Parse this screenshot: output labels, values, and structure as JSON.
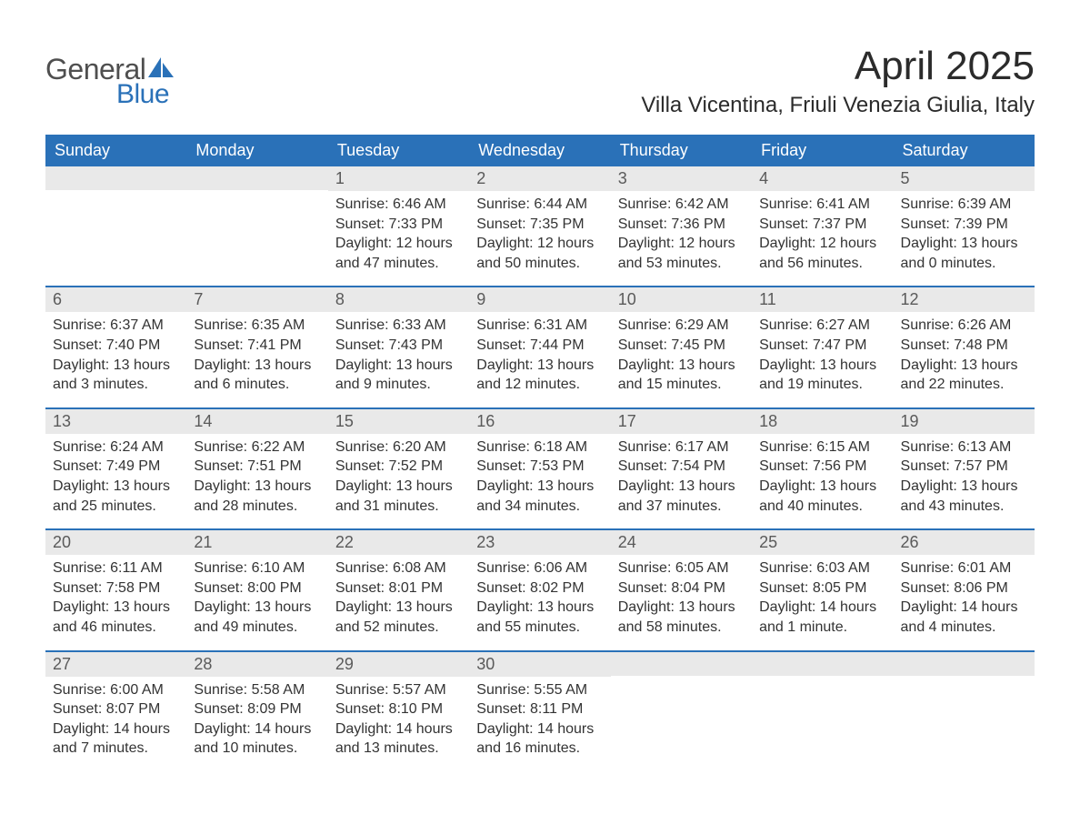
{
  "logo": {
    "text_general": "General",
    "text_blue": "Blue",
    "accent_color": "#2a71b8",
    "text_color": "#4f4f4f"
  },
  "title": "April 2025",
  "location": "Villa Vicentina, Friuli Venezia Giulia, Italy",
  "colors": {
    "header_bg": "#2a71b8",
    "header_fg": "#ffffff",
    "daynum_bg": "#e9e9e9",
    "daynum_fg": "#5a5a5a",
    "body_fg": "#333333",
    "week_divider": "#2a71b8",
    "page_bg": "#ffffff"
  },
  "typography": {
    "title_fontsize": 44,
    "location_fontsize": 24,
    "weekday_fontsize": 18,
    "daynum_fontsize": 18,
    "body_fontsize": 16
  },
  "weekdays": [
    "Sunday",
    "Monday",
    "Tuesday",
    "Wednesday",
    "Thursday",
    "Friday",
    "Saturday"
  ],
  "weeks": [
    [
      {
        "day": "",
        "sunrise": "",
        "sunset": "",
        "daylight": ""
      },
      {
        "day": "",
        "sunrise": "",
        "sunset": "",
        "daylight": ""
      },
      {
        "day": "1",
        "sunrise": "Sunrise: 6:46 AM",
        "sunset": "Sunset: 7:33 PM",
        "daylight": "Daylight: 12 hours and 47 minutes."
      },
      {
        "day": "2",
        "sunrise": "Sunrise: 6:44 AM",
        "sunset": "Sunset: 7:35 PM",
        "daylight": "Daylight: 12 hours and 50 minutes."
      },
      {
        "day": "3",
        "sunrise": "Sunrise: 6:42 AM",
        "sunset": "Sunset: 7:36 PM",
        "daylight": "Daylight: 12 hours and 53 minutes."
      },
      {
        "day": "4",
        "sunrise": "Sunrise: 6:41 AM",
        "sunset": "Sunset: 7:37 PM",
        "daylight": "Daylight: 12 hours and 56 minutes."
      },
      {
        "day": "5",
        "sunrise": "Sunrise: 6:39 AM",
        "sunset": "Sunset: 7:39 PM",
        "daylight": "Daylight: 13 hours and 0 minutes."
      }
    ],
    [
      {
        "day": "6",
        "sunrise": "Sunrise: 6:37 AM",
        "sunset": "Sunset: 7:40 PM",
        "daylight": "Daylight: 13 hours and 3 minutes."
      },
      {
        "day": "7",
        "sunrise": "Sunrise: 6:35 AM",
        "sunset": "Sunset: 7:41 PM",
        "daylight": "Daylight: 13 hours and 6 minutes."
      },
      {
        "day": "8",
        "sunrise": "Sunrise: 6:33 AM",
        "sunset": "Sunset: 7:43 PM",
        "daylight": "Daylight: 13 hours and 9 minutes."
      },
      {
        "day": "9",
        "sunrise": "Sunrise: 6:31 AM",
        "sunset": "Sunset: 7:44 PM",
        "daylight": "Daylight: 13 hours and 12 minutes."
      },
      {
        "day": "10",
        "sunrise": "Sunrise: 6:29 AM",
        "sunset": "Sunset: 7:45 PM",
        "daylight": "Daylight: 13 hours and 15 minutes."
      },
      {
        "day": "11",
        "sunrise": "Sunrise: 6:27 AM",
        "sunset": "Sunset: 7:47 PM",
        "daylight": "Daylight: 13 hours and 19 minutes."
      },
      {
        "day": "12",
        "sunrise": "Sunrise: 6:26 AM",
        "sunset": "Sunset: 7:48 PM",
        "daylight": "Daylight: 13 hours and 22 minutes."
      }
    ],
    [
      {
        "day": "13",
        "sunrise": "Sunrise: 6:24 AM",
        "sunset": "Sunset: 7:49 PM",
        "daylight": "Daylight: 13 hours and 25 minutes."
      },
      {
        "day": "14",
        "sunrise": "Sunrise: 6:22 AM",
        "sunset": "Sunset: 7:51 PM",
        "daylight": "Daylight: 13 hours and 28 minutes."
      },
      {
        "day": "15",
        "sunrise": "Sunrise: 6:20 AM",
        "sunset": "Sunset: 7:52 PM",
        "daylight": "Daylight: 13 hours and 31 minutes."
      },
      {
        "day": "16",
        "sunrise": "Sunrise: 6:18 AM",
        "sunset": "Sunset: 7:53 PM",
        "daylight": "Daylight: 13 hours and 34 minutes."
      },
      {
        "day": "17",
        "sunrise": "Sunrise: 6:17 AM",
        "sunset": "Sunset: 7:54 PM",
        "daylight": "Daylight: 13 hours and 37 minutes."
      },
      {
        "day": "18",
        "sunrise": "Sunrise: 6:15 AM",
        "sunset": "Sunset: 7:56 PM",
        "daylight": "Daylight: 13 hours and 40 minutes."
      },
      {
        "day": "19",
        "sunrise": "Sunrise: 6:13 AM",
        "sunset": "Sunset: 7:57 PM",
        "daylight": "Daylight: 13 hours and 43 minutes."
      }
    ],
    [
      {
        "day": "20",
        "sunrise": "Sunrise: 6:11 AM",
        "sunset": "Sunset: 7:58 PM",
        "daylight": "Daylight: 13 hours and 46 minutes."
      },
      {
        "day": "21",
        "sunrise": "Sunrise: 6:10 AM",
        "sunset": "Sunset: 8:00 PM",
        "daylight": "Daylight: 13 hours and 49 minutes."
      },
      {
        "day": "22",
        "sunrise": "Sunrise: 6:08 AM",
        "sunset": "Sunset: 8:01 PM",
        "daylight": "Daylight: 13 hours and 52 minutes."
      },
      {
        "day": "23",
        "sunrise": "Sunrise: 6:06 AM",
        "sunset": "Sunset: 8:02 PM",
        "daylight": "Daylight: 13 hours and 55 minutes."
      },
      {
        "day": "24",
        "sunrise": "Sunrise: 6:05 AM",
        "sunset": "Sunset: 8:04 PM",
        "daylight": "Daylight: 13 hours and 58 minutes."
      },
      {
        "day": "25",
        "sunrise": "Sunrise: 6:03 AM",
        "sunset": "Sunset: 8:05 PM",
        "daylight": "Daylight: 14 hours and 1 minute."
      },
      {
        "day": "26",
        "sunrise": "Sunrise: 6:01 AM",
        "sunset": "Sunset: 8:06 PM",
        "daylight": "Daylight: 14 hours and 4 minutes."
      }
    ],
    [
      {
        "day": "27",
        "sunrise": "Sunrise: 6:00 AM",
        "sunset": "Sunset: 8:07 PM",
        "daylight": "Daylight: 14 hours and 7 minutes."
      },
      {
        "day": "28",
        "sunrise": "Sunrise: 5:58 AM",
        "sunset": "Sunset: 8:09 PM",
        "daylight": "Daylight: 14 hours and 10 minutes."
      },
      {
        "day": "29",
        "sunrise": "Sunrise: 5:57 AM",
        "sunset": "Sunset: 8:10 PM",
        "daylight": "Daylight: 14 hours and 13 minutes."
      },
      {
        "day": "30",
        "sunrise": "Sunrise: 5:55 AM",
        "sunset": "Sunset: 8:11 PM",
        "daylight": "Daylight: 14 hours and 16 minutes."
      },
      {
        "day": "",
        "sunrise": "",
        "sunset": "",
        "daylight": ""
      },
      {
        "day": "",
        "sunrise": "",
        "sunset": "",
        "daylight": ""
      },
      {
        "day": "",
        "sunrise": "",
        "sunset": "",
        "daylight": ""
      }
    ]
  ]
}
